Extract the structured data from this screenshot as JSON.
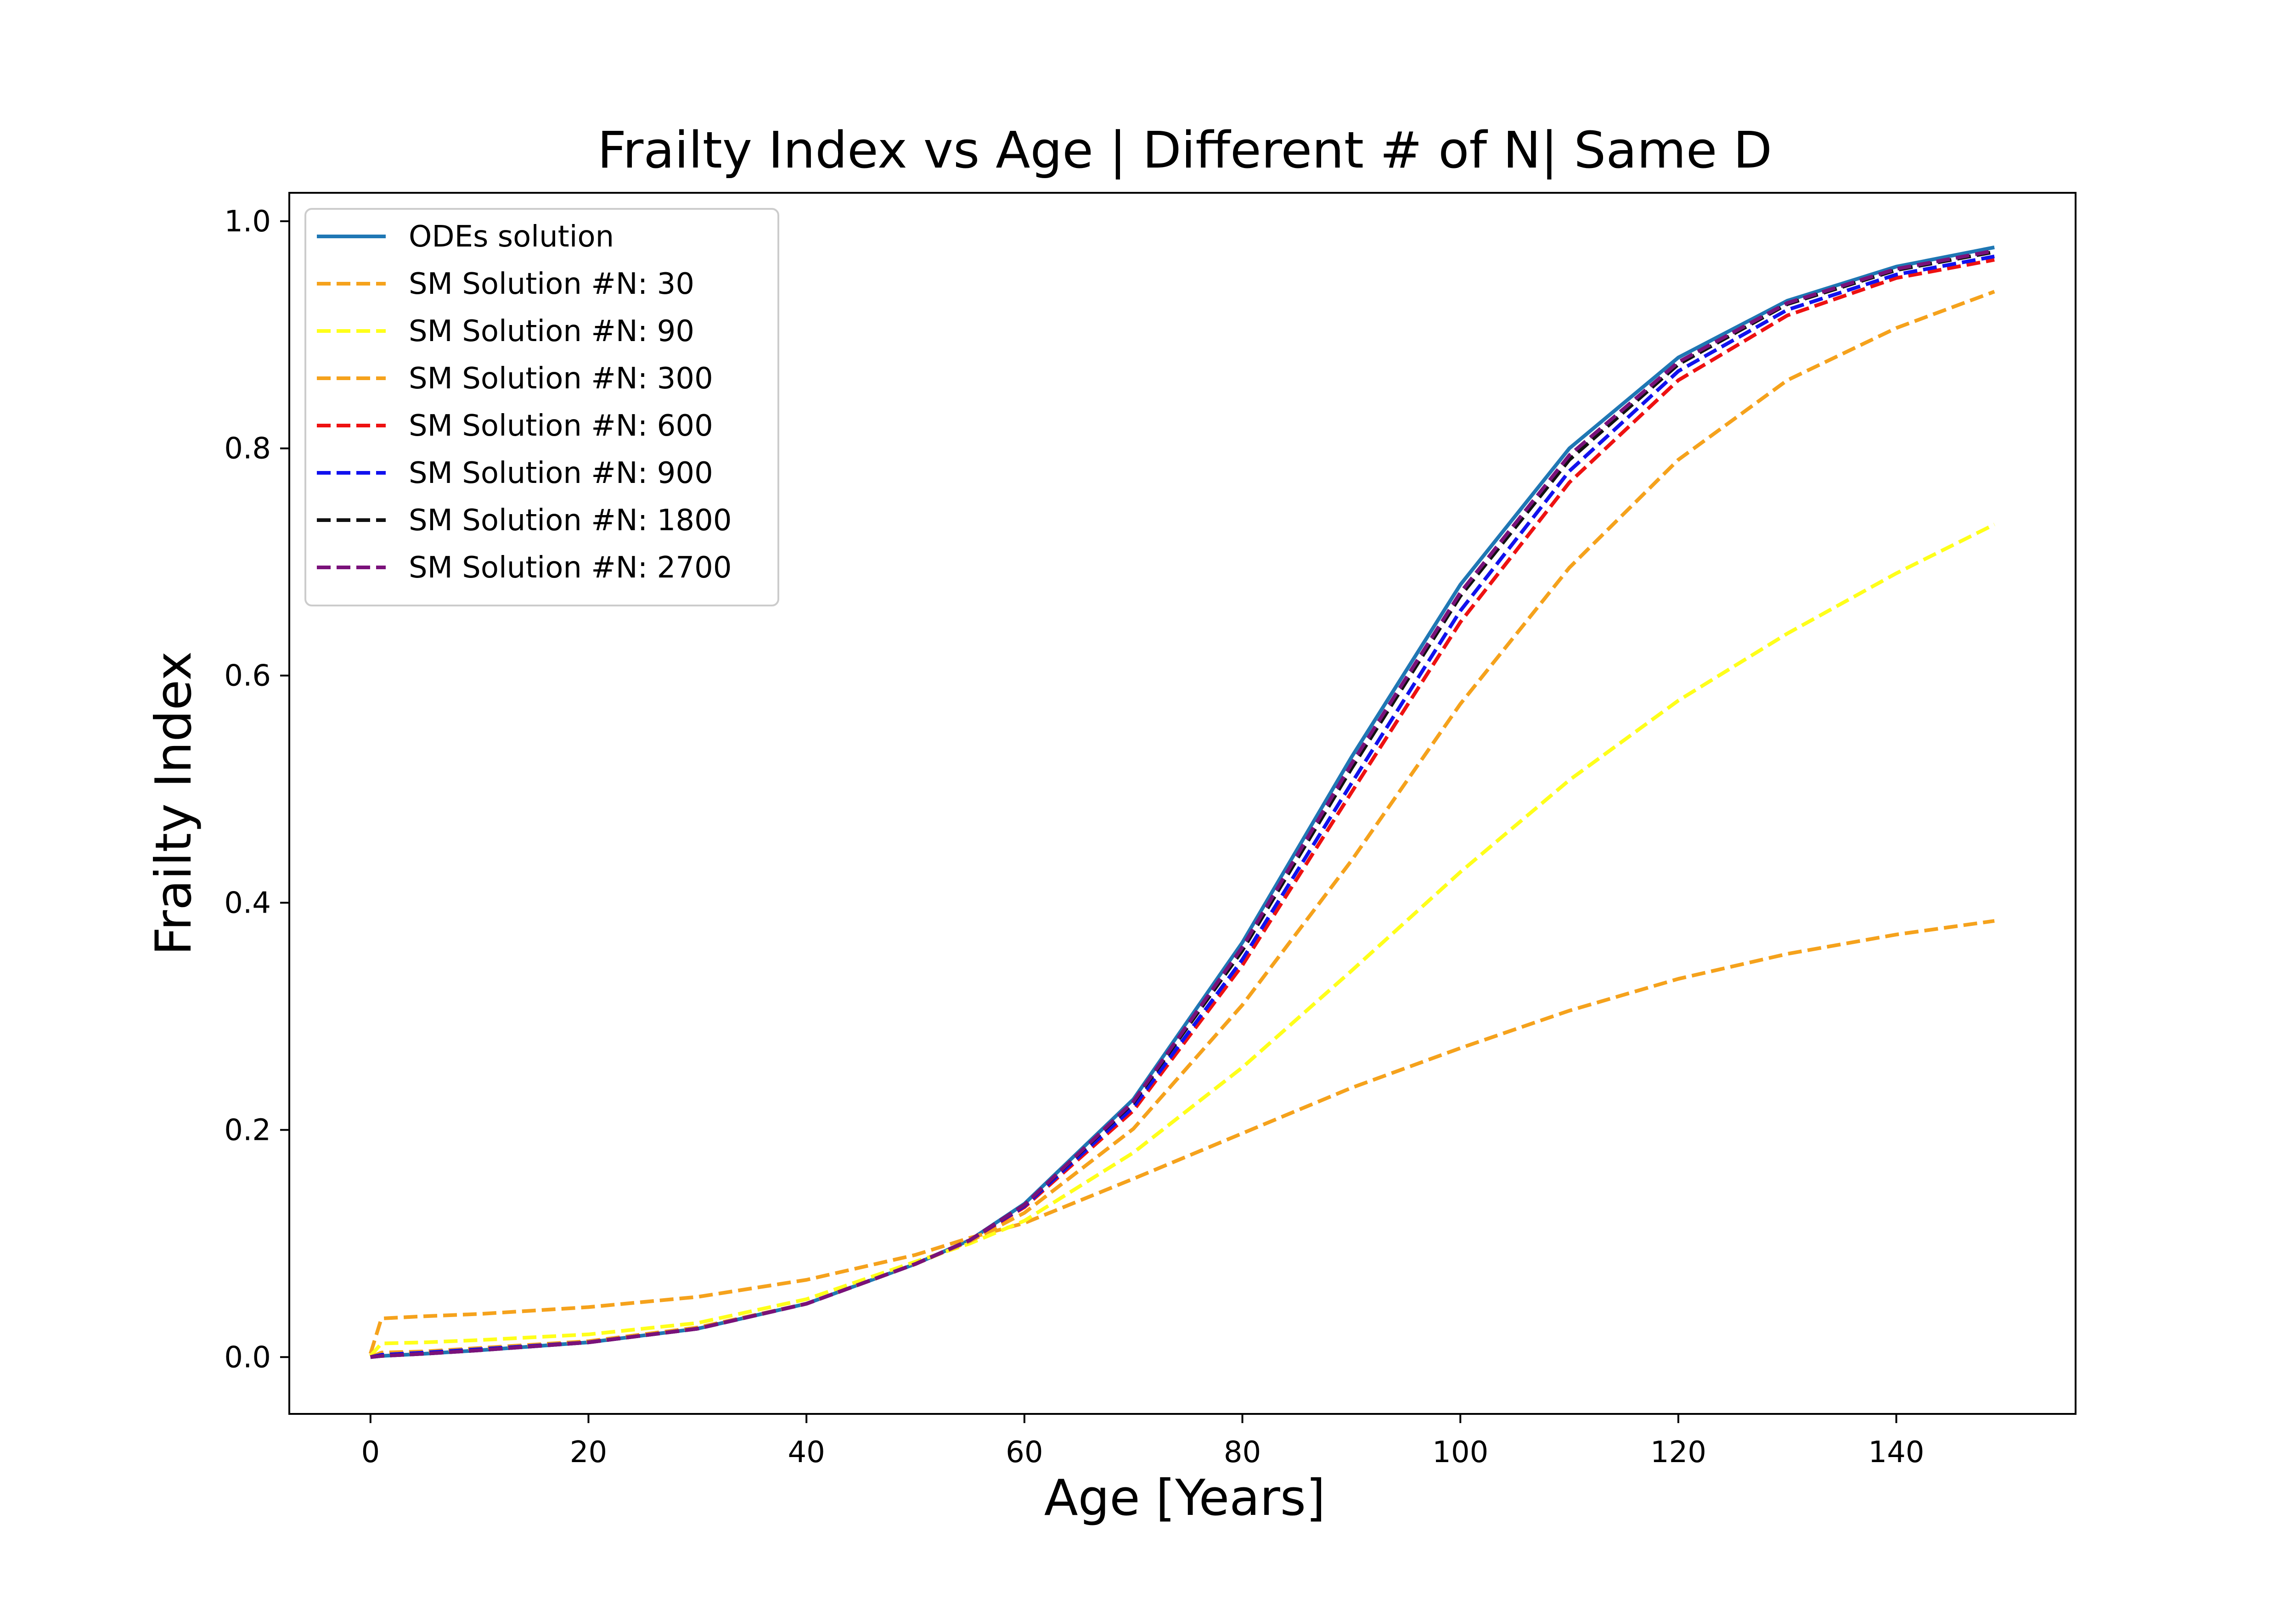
{
  "chart_data": {
    "type": "line",
    "title": "Frailty Index vs Age | Different # of N| Same D",
    "xlabel": "Age [Years]",
    "ylabel": "Frailty Index",
    "xlim": [
      -7.45,
      156.45
    ],
    "ylim": [
      -0.05,
      1.025
    ],
    "xticks": [
      0,
      20,
      40,
      60,
      80,
      100,
      120,
      140
    ],
    "yticks": [
      0.0,
      0.2,
      0.4,
      0.6,
      0.8,
      1.0
    ],
    "xtick_labels": [
      "0",
      "20",
      "40",
      "60",
      "80",
      "100",
      "120",
      "140"
    ],
    "ytick_labels": [
      "0.0",
      "0.2",
      "0.4",
      "0.6",
      "0.8",
      "1.0"
    ],
    "grid": false,
    "legend_position": "upper-left",
    "x": [
      0,
      1,
      5,
      10,
      20,
      30,
      40,
      50,
      55,
      60,
      70,
      80,
      90,
      100,
      110,
      120,
      130,
      140,
      149
    ],
    "series": [
      {
        "name": "ODEs solution",
        "color": "#1f77b4",
        "style": "solid",
        "values": [
          0.0,
          0.001,
          0.003,
          0.006,
          0.013,
          0.025,
          0.047,
          0.082,
          0.103,
          0.135,
          0.227,
          0.365,
          0.528,
          0.68,
          0.8,
          0.88,
          0.93,
          0.96,
          0.977
        ]
      },
      {
        "name": "SM Solution #N: 30",
        "color": "#f5a21c",
        "style": "dashed",
        "values": [
          0.003,
          0.034,
          0.036,
          0.038,
          0.044,
          0.053,
          0.068,
          0.09,
          0.105,
          0.118,
          0.157,
          0.197,
          0.237,
          0.272,
          0.305,
          0.333,
          0.355,
          0.372,
          0.384
        ]
      },
      {
        "name": "SM Solution #N: 90",
        "color": "#ffff1a",
        "style": "dashed",
        "values": [
          0.001,
          0.012,
          0.013,
          0.015,
          0.02,
          0.03,
          0.051,
          0.084,
          0.1,
          0.12,
          0.18,
          0.255,
          0.34,
          0.427,
          0.508,
          0.578,
          0.637,
          0.69,
          0.733
        ]
      },
      {
        "name": "SM Solution #N: 300",
        "color": "#f5a21c",
        "style": "dashed",
        "values": [
          0.0,
          0.004,
          0.005,
          0.008,
          0.014,
          0.026,
          0.047,
          0.082,
          0.102,
          0.127,
          0.201,
          0.31,
          0.437,
          0.575,
          0.695,
          0.79,
          0.86,
          0.906,
          0.938
        ]
      },
      {
        "name": "SM Solution #N: 600",
        "color": "#ee1111",
        "style": "dashed",
        "values": [
          0.0,
          0.002,
          0.004,
          0.007,
          0.013,
          0.025,
          0.047,
          0.082,
          0.103,
          0.132,
          0.217,
          0.345,
          0.497,
          0.647,
          0.77,
          0.86,
          0.917,
          0.95,
          0.966
        ]
      },
      {
        "name": "SM Solution #N: 900",
        "color": "#1111ee",
        "style": "dashed",
        "values": [
          0.0,
          0.002,
          0.004,
          0.007,
          0.013,
          0.025,
          0.047,
          0.082,
          0.103,
          0.133,
          0.22,
          0.35,
          0.505,
          0.657,
          0.78,
          0.868,
          0.922,
          0.953,
          0.969
        ]
      },
      {
        "name": "SM Solution #N: 1800",
        "color": "#111111",
        "style": "dashed",
        "values": [
          0.0,
          0.001,
          0.003,
          0.006,
          0.013,
          0.025,
          0.047,
          0.082,
          0.103,
          0.134,
          0.224,
          0.358,
          0.518,
          0.67,
          0.79,
          0.874,
          0.927,
          0.957,
          0.973
        ]
      },
      {
        "name": "SM Solution #N: 2700",
        "color": "#7a117a",
        "style": "dashed",
        "values": [
          0.0,
          0.001,
          0.003,
          0.006,
          0.013,
          0.025,
          0.047,
          0.082,
          0.103,
          0.134,
          0.225,
          0.361,
          0.522,
          0.673,
          0.794,
          0.876,
          0.928,
          0.958,
          0.974
        ]
      }
    ]
  }
}
